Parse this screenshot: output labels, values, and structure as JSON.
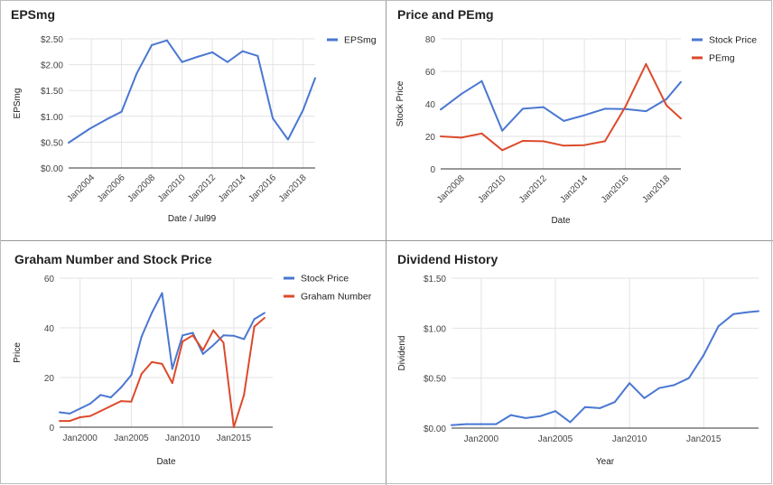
{
  "chart_data": [
    {
      "id": "eps",
      "type": "line",
      "title": "EPSmg",
      "xlabel": "Date / Jul99",
      "ylabel": "EPSmg",
      "xlim": [
        2002.5,
        2018.8
      ],
      "ylim": [
        0,
        2.5
      ],
      "xticks": [
        2004,
        2006,
        2008,
        2010,
        2012,
        2014,
        2016,
        2018
      ],
      "xtick_labels": [
        "Jan2004",
        "Jan2006",
        "Jan2008",
        "Jan2010",
        "Jan2012",
        "Jan2014",
        "Jan2016",
        "Jan2018"
      ],
      "yticks": [
        0,
        0.5,
        1.0,
        1.5,
        2.0,
        2.5
      ],
      "ytick_labels": [
        "$0.00",
        "$0.50",
        "$1.00",
        "$1.50",
        "$2.00",
        "$2.50"
      ],
      "grid": true,
      "legend": "top-right",
      "series": [
        {
          "name": "EPSmg",
          "color": "#4a77d1",
          "x": [
            2002.5,
            2003.9,
            2005.0,
            2006.0,
            2007.0,
            2008.0,
            2009.0,
            2010.0,
            2011.0,
            2012.0,
            2013.0,
            2014.0,
            2015.0,
            2016.0,
            2017.0,
            2018.0,
            2018.8
          ],
          "y": [
            0.49,
            0.76,
            0.94,
            1.09,
            1.83,
            2.38,
            2.47,
            2.05,
            2.15,
            2.24,
            2.05,
            2.26,
            2.17,
            0.96,
            0.55,
            1.12,
            1.74
          ]
        }
      ]
    },
    {
      "id": "price_pe",
      "type": "line",
      "title": "Price and PEmg",
      "xlabel": "Date",
      "ylabel": "Stock Price",
      "xlim": [
        2007.0,
        2018.7
      ],
      "ylim": [
        0,
        80
      ],
      "xticks": [
        2008,
        2010,
        2012,
        2014,
        2016,
        2018
      ],
      "xtick_labels": [
        "Jan2008",
        "Jan2010",
        "Jan2012",
        "Jan2014",
        "Jan2016",
        "Jan2018"
      ],
      "yticks": [
        0,
        20,
        40,
        60,
        80
      ],
      "ytick_labels": [
        "0",
        "20",
        "40",
        "60",
        "80"
      ],
      "grid": true,
      "legend": "top-right",
      "series": [
        {
          "name": "Stock Price",
          "color": "#4a77d1",
          "x": [
            2007.0,
            2008.0,
            2009.0,
            2010.0,
            2011.0,
            2012.0,
            2013.0,
            2014.0,
            2015.0,
            2016.0,
            2017.0,
            2018.0,
            2018.7
          ],
          "y": [
            36.5,
            46.0,
            54.0,
            23.5,
            37.0,
            38.0,
            29.5,
            33.0,
            37.0,
            36.8,
            35.5,
            43.0,
            53.5
          ]
        },
        {
          "name": "PEmg",
          "color": "#dc4a2c",
          "x": [
            2007.0,
            2008.0,
            2009.0,
            2010.0,
            2011.0,
            2012.0,
            2013.0,
            2014.0,
            2015.0,
            2016.0,
            2017.0,
            2018.0,
            2018.7
          ],
          "y": [
            20.0,
            19.2,
            21.8,
            11.5,
            17.2,
            17.0,
            14.3,
            14.6,
            17.0,
            38.3,
            64.5,
            39.0,
            31.0
          ]
        }
      ]
    },
    {
      "id": "graham",
      "type": "line",
      "title": "Graham Number and Stock Price",
      "xlabel": "Date",
      "ylabel": "Price",
      "xlim": [
        1998.0,
        2018.8
      ],
      "ylim": [
        0,
        60
      ],
      "xticks": [
        2000,
        2005,
        2010,
        2015
      ],
      "xtick_labels": [
        "Jan2000",
        "Jan2005",
        "Jan2010",
        "Jan2015"
      ],
      "yticks": [
        0,
        20,
        40,
        60
      ],
      "ytick_labels": [
        "0",
        "20",
        "40",
        "60"
      ],
      "grid": true,
      "legend": "top-right",
      "series": [
        {
          "name": "Stock Price",
          "color": "#4a77d1",
          "x": [
            1998.0,
            1999.0,
            2000.0,
            2001.0,
            2002.0,
            2003.0,
            2004.0,
            2005.0,
            2006.0,
            2007.0,
            2008.0,
            2009.0,
            2010.0,
            2011.0,
            2012.0,
            2013.0,
            2014.0,
            2015.0,
            2016.0,
            2017.0,
            2018.0
          ],
          "y": [
            6.0,
            5.5,
            7.5,
            9.5,
            13.0,
            12.0,
            16.0,
            21.0,
            36.5,
            46.0,
            54.0,
            23.5,
            37.0,
            38.0,
            29.5,
            33.0,
            37.0,
            36.8,
            35.5,
            43.5,
            46.0
          ]
        },
        {
          "name": "Graham Number",
          "color": "#dc4a2c",
          "x": [
            1998.0,
            1999.0,
            2000.0,
            2001.0,
            2002.0,
            2003.0,
            2004.0,
            2005.0,
            2006.0,
            2007.0,
            2008.0,
            2009.0,
            2010.0,
            2011.0,
            2012.0,
            2013.0,
            2014.0,
            2015.0,
            2016.0,
            2017.0,
            2018.0
          ],
          "y": [
            2.5,
            2.5,
            4.0,
            4.5,
            6.5,
            8.5,
            10.5,
            10.3,
            21.5,
            26.2,
            25.5,
            17.8,
            34.5,
            37.0,
            31.0,
            39.0,
            34.0,
            0.0,
            13.0,
            40.5,
            44.0
          ]
        }
      ]
    },
    {
      "id": "dividend",
      "type": "line",
      "title": "Dividend History",
      "xlabel": "Year",
      "ylabel": "Dividend",
      "xlim": [
        1998.0,
        2018.7
      ],
      "ylim": [
        0,
        1.5
      ],
      "xticks": [
        2000,
        2005,
        2010,
        2015
      ],
      "xtick_labels": [
        "Jan2000",
        "Jan2005",
        "Jan2010",
        "Jan2015"
      ],
      "yticks": [
        0,
        0.5,
        1.0,
        1.5
      ],
      "ytick_labels": [
        "$0.00",
        "$0.50",
        "$1.00",
        "$1.50"
      ],
      "grid": true,
      "legend": "none",
      "series": [
        {
          "name": "",
          "color": "#4a77d1",
          "x": [
            1998.0,
            1999.0,
            2000.0,
            2001.0,
            2002.0,
            2003.0,
            2004.0,
            2005.0,
            2006.0,
            2007.0,
            2008.0,
            2009.0,
            2010.0,
            2011.0,
            2012.0,
            2013.0,
            2014.0,
            2015.0,
            2016.0,
            2017.0,
            2018.0,
            2018.7
          ],
          "y": [
            0.03,
            0.04,
            0.04,
            0.04,
            0.13,
            0.1,
            0.12,
            0.17,
            0.06,
            0.21,
            0.2,
            0.26,
            0.45,
            0.3,
            0.4,
            0.43,
            0.5,
            0.73,
            1.02,
            1.14,
            1.16,
            1.17
          ]
        }
      ]
    }
  ]
}
